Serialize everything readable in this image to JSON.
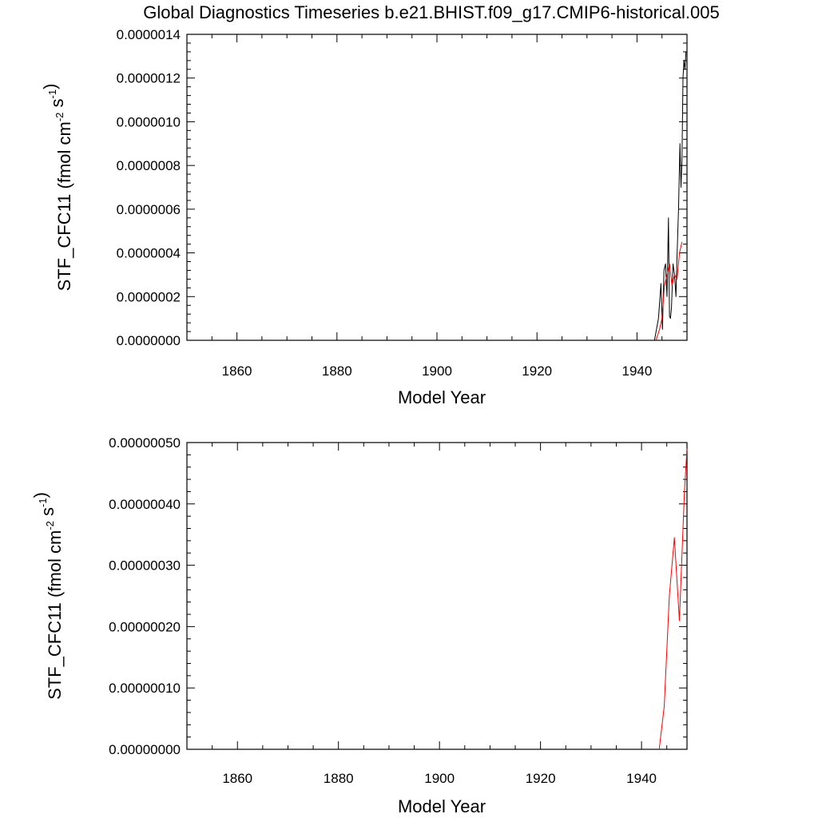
{
  "figure": {
    "title": "Global Diagnostics Timeseries b.e21.BHIST.f09_g17.CMIP6-historical.005"
  },
  "chart_data": [
    {
      "type": "line",
      "xlabel": "Model Year",
      "ylabel_main": "STF_CFC11 (fmol cm",
      "ylabel_exp1": "-2",
      "ylabel_mid": " s",
      "ylabel_exp2": "-1",
      "ylabel_end": ")",
      "xlim": [
        1850,
        1950
      ],
      "ylim": [
        0,
        1.4e-06
      ],
      "x_ticks": [
        1860,
        1880,
        1900,
        1920,
        1940
      ],
      "y_ticks": [
        0,
        2e-07,
        4e-07,
        6e-07,
        8e-07,
        1e-06,
        1.2e-06,
        1.4e-06
      ],
      "y_tick_labels": [
        "0.0000000",
        "0.0000002",
        "0.0000004",
        "0.0000006",
        "0.0000008",
        "0.0000010",
        "0.0000012",
        "0.0000014"
      ],
      "series": [
        {
          "color": "#000000",
          "x": [
            1943.5,
            1944.3,
            1944.8,
            1945.1,
            1945.4,
            1945.7,
            1946.0,
            1946.3,
            1946.5,
            1946.7,
            1946.9,
            1947.2,
            1947.5,
            1947.8,
            1948.0,
            1948.3,
            1948.6,
            1948.8,
            1949.0,
            1949.2,
            1949.4,
            1949.6,
            1949.8
          ],
          "y": [
            0,
            1e-07,
            2.6e-07,
            5e-08,
            3.2e-07,
            3.5e-07,
            2e-07,
            5.6e-07,
            1.1e-07,
            1e-07,
            1.5e-07,
            3.5e-07,
            3e-07,
            2e-07,
            3.8e-07,
            6e-07,
            9e-07,
            7e-07,
            8.2e-07,
            1.2e-06,
            1.28e-06,
            1.24e-06,
            1.32e-06
          ]
        },
        {
          "color": "#ff0000",
          "x": [
            1943.8,
            1944.5,
            1945.0,
            1945.5,
            1946.0,
            1946.5,
            1947.0,
            1947.5,
            1948.0,
            1948.5,
            1949.0
          ],
          "y": [
            0,
            5e-08,
            1e-07,
            2.5e-07,
            3e-07,
            3.5e-07,
            2.5e-07,
            3e-07,
            2.8e-07,
            4e-07,
            4.5e-07
          ]
        }
      ]
    },
    {
      "type": "line",
      "xlabel": "Model Year",
      "ylabel_main": "STF_CFC11 (fmol cm",
      "ylabel_exp1": "-2",
      "ylabel_mid": " s",
      "ylabel_exp2": "-1",
      "ylabel_end": ")",
      "xlim": [
        1850,
        1949
      ],
      "ylim": [
        0,
        5e-07
      ],
      "x_ticks": [
        1860,
        1880,
        1900,
        1920,
        1940
      ],
      "y_ticks": [
        0,
        1e-07,
        2e-07,
        3e-07,
        4e-07,
        5e-07
      ],
      "y_tick_labels": [
        "0.00000000",
        "0.00000010",
        "0.00000020",
        "0.00000030",
        "0.00000040",
        "0.00000050"
      ],
      "series": [
        {
          "color": "#ff0000",
          "x": [
            1943.5,
            1944.5,
            1945.5,
            1946.5,
            1947.5,
            1948.5,
            1949.0
          ],
          "y": [
            0,
            7e-08,
            2.5e-07,
            3.45e-07,
            2.1e-07,
            4.2e-07,
            4.9e-07
          ]
        }
      ]
    }
  ]
}
